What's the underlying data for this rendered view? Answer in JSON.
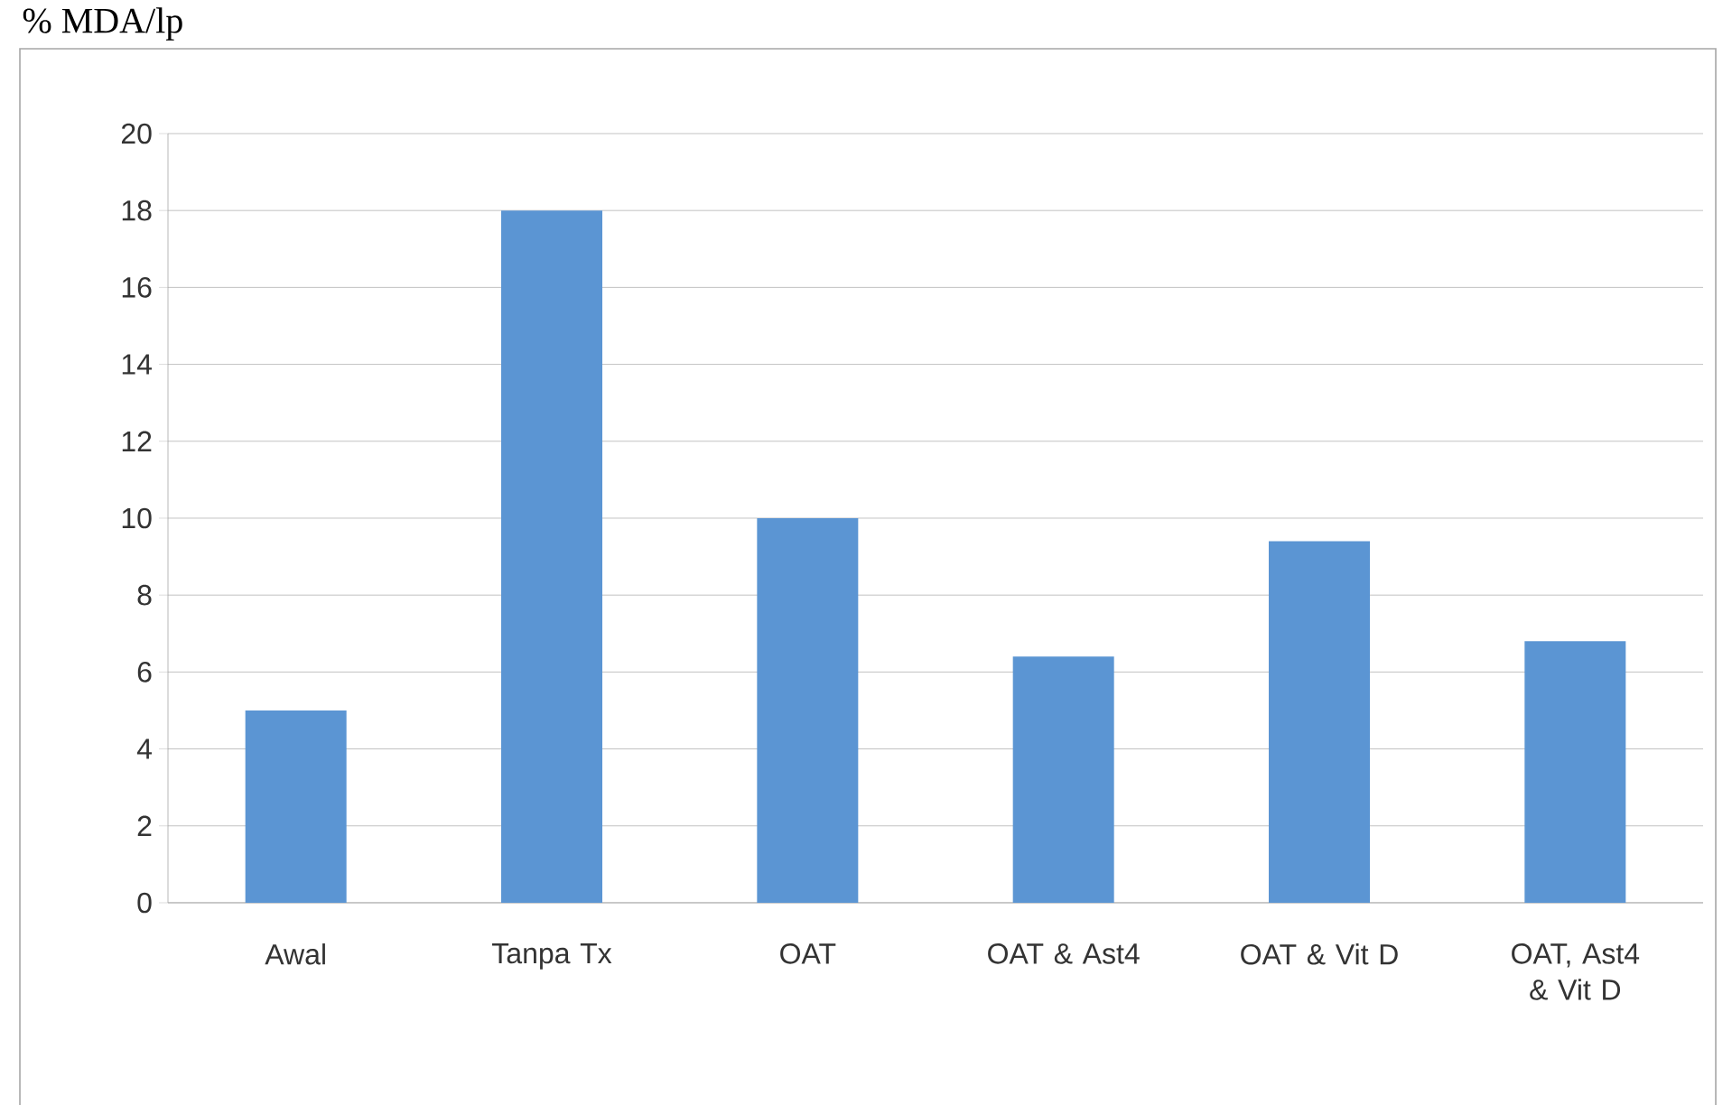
{
  "chart_data": {
    "type": "bar",
    "ylabel": "% MDA/lp",
    "categories": [
      "Awal",
      "Tanpa Tx",
      "OAT",
      "OAT & Ast4",
      "OAT & Vit D",
      "OAT, Ast4 & Vit D"
    ],
    "values": [
      5,
      18,
      10,
      6.4,
      9.4,
      6.8
    ],
    "color": "#5b95d3",
    "ylim": [
      0,
      20
    ],
    "yticks": [
      0,
      2,
      4,
      6,
      8,
      10,
      12,
      14,
      16,
      18,
      20
    ],
    "grid": "y"
  }
}
